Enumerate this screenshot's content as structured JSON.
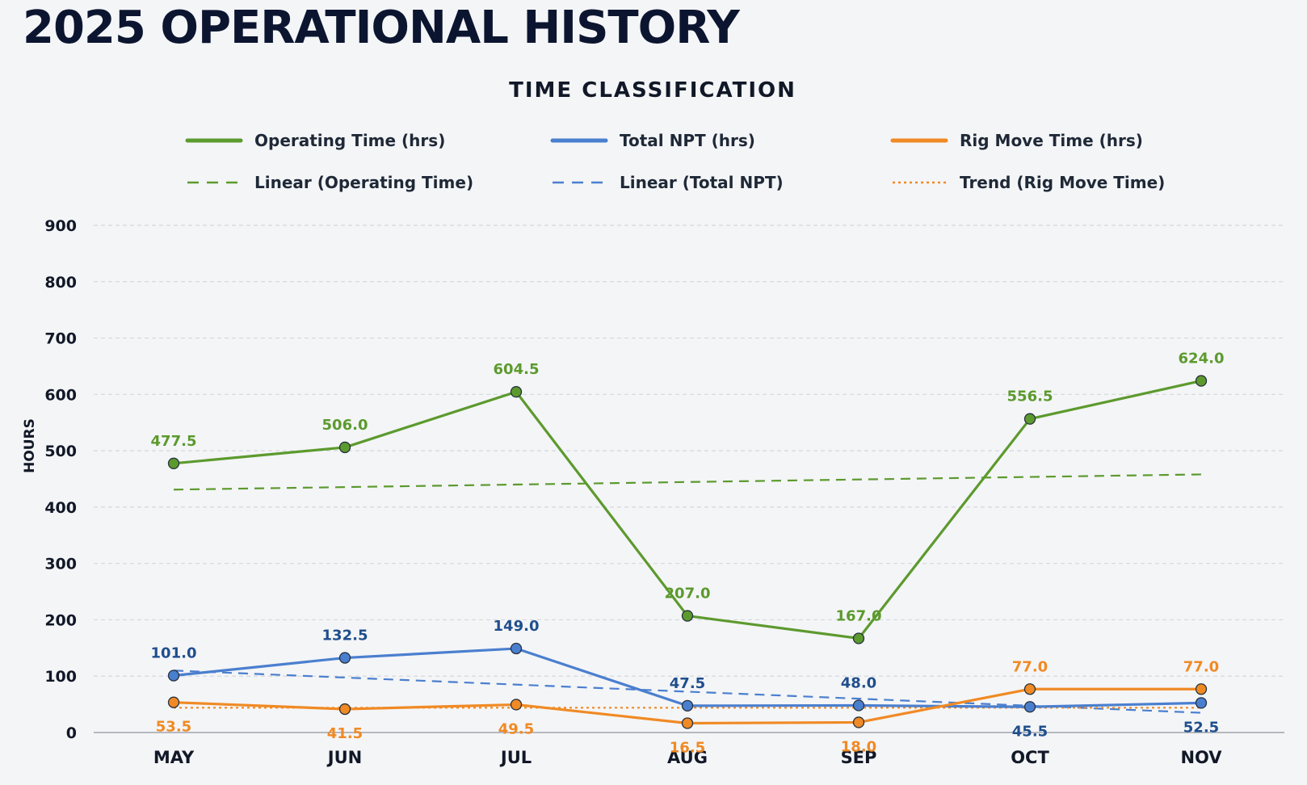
{
  "page": {
    "title": "2025 OPERATIONAL HISTORY"
  },
  "chart_data": {
    "type": "line",
    "title": "TIME CLASSIFICATION",
    "xlabel": "",
    "ylabel": "HOURS",
    "categories": [
      "MAY",
      "JUN",
      "JUL",
      "AUG",
      "SEP",
      "OCT",
      "NOV"
    ],
    "ylim": [
      0,
      900
    ],
    "yticks": [
      0,
      100,
      200,
      300,
      400,
      500,
      600,
      700,
      800,
      900
    ],
    "grid": true,
    "legend_position": "top",
    "series": [
      {
        "name": "Operating Time (hrs)",
        "color": "#5c9a2e",
        "values": [
          477.5,
          506.0,
          604.5,
          207.0,
          167.0,
          556.5,
          624.0
        ],
        "labels": [
          "477.5",
          "506.0",
          "604.5",
          "207.0",
          "167.0",
          "556.5",
          "624.0"
        ],
        "label_position": "above"
      },
      {
        "name": "Total NPT (hrs)",
        "color": "#4a7fcf",
        "label_color": "#1f4e8c",
        "values": [
          101.0,
          132.5,
          149.0,
          47.5,
          48.0,
          45.5,
          52.5
        ],
        "labels": [
          "101.0",
          "132.5",
          "149.0",
          "47.5",
          "48.0",
          "45.5",
          "52.5"
        ],
        "label_position": [
          "above",
          "above",
          "above",
          "above",
          "above",
          "below",
          "below"
        ]
      },
      {
        "name": "Rig Move Time (hrs)",
        "color": "#f08a24",
        "values": [
          53.5,
          41.5,
          49.5,
          16.5,
          18.0,
          77.0,
          77.0
        ],
        "labels": [
          "53.5",
          "41.5",
          "49.5",
          "16.5",
          "18.0",
          "77.0",
          "77.0"
        ],
        "label_position": [
          "below",
          "below",
          "below",
          "below",
          "below",
          "above",
          "above"
        ]
      }
    ],
    "trendlines": [
      {
        "name": "Linear (Operating Time)",
        "color": "#5c9a2e",
        "style": "dashed",
        "start": 431,
        "end": 458
      },
      {
        "name": "Linear (Total NPT)",
        "color": "#4a7fcf",
        "style": "dashed",
        "start": 110,
        "end": 35
      },
      {
        "name": "Trend (Rig Move Time)",
        "color": "#f08a24",
        "style": "dotted",
        "start": 44,
        "end": 44
      }
    ]
  }
}
